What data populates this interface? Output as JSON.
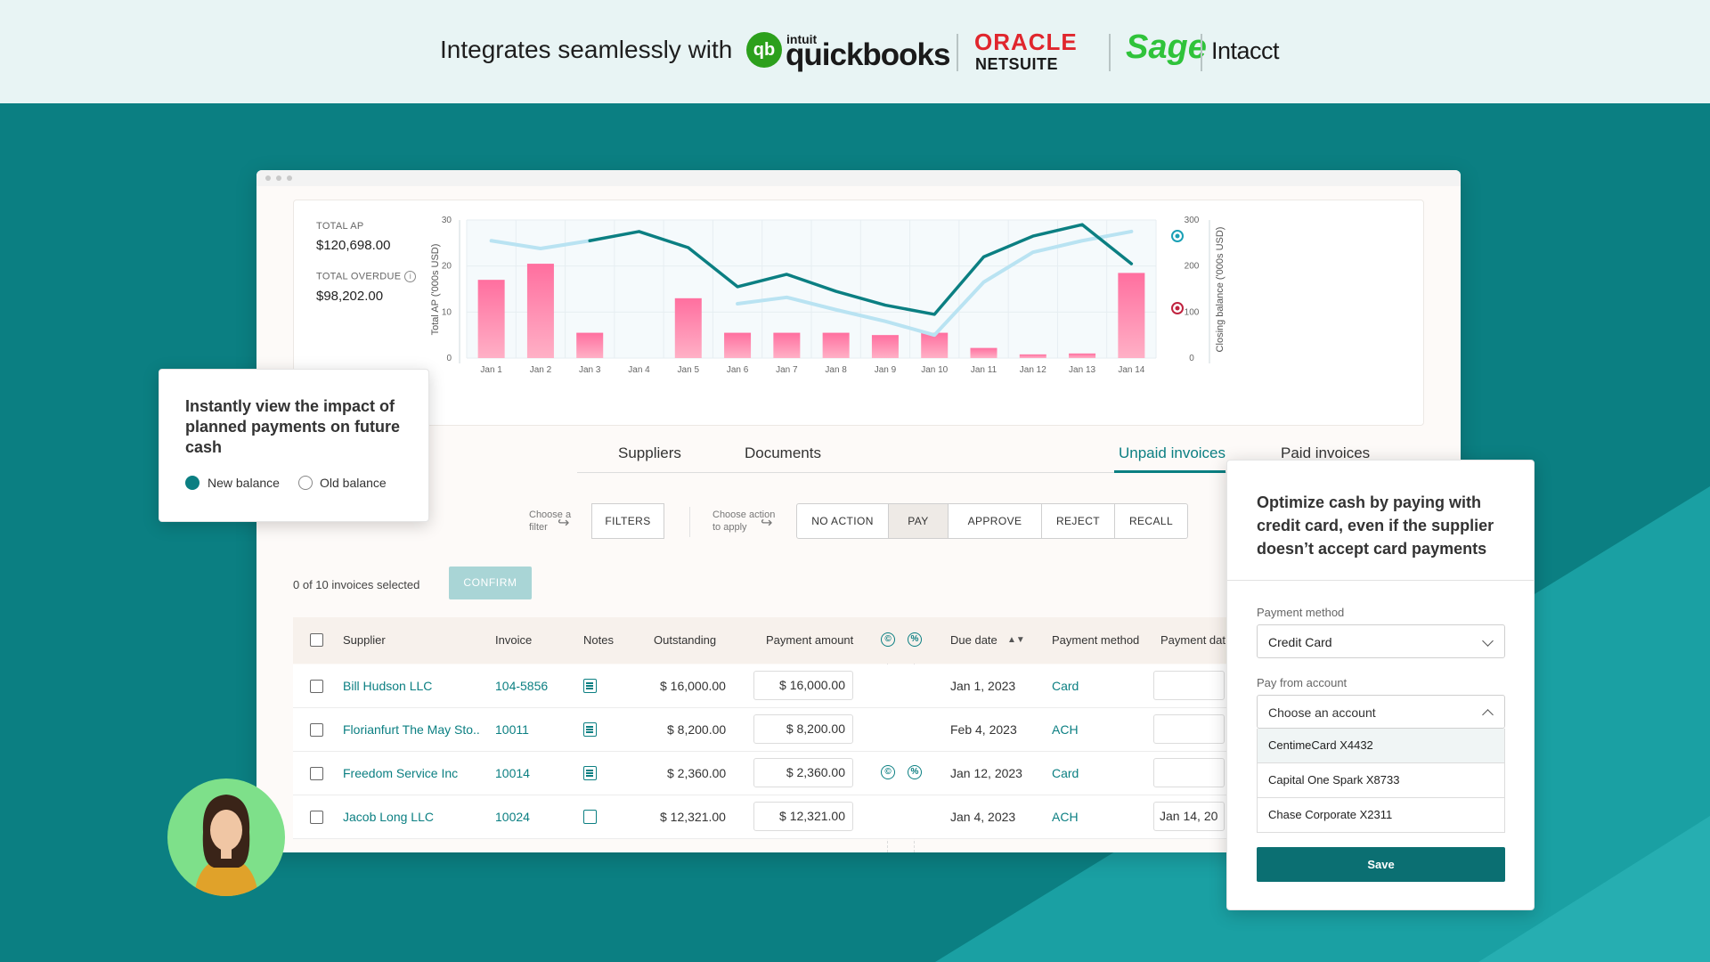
{
  "banner": {
    "text": "Integrates seamlessly with",
    "logos": {
      "quickbooks_mark": "qb",
      "quickbooks_small": "intuit",
      "quickbooks_word": "quickbooks",
      "oracle": "ORACLE",
      "netsuite": "NETSUITE",
      "sage": "Sage",
      "intacct": "Intacct"
    }
  },
  "summary": {
    "total_ap_label": "TOTAL AP",
    "total_ap_value": "$120,698.00",
    "total_overdue_label": "TOTAL OVERDUE",
    "total_overdue_value": "$98,202.00"
  },
  "chart_data": {
    "type": "bar",
    "categories": [
      "Jan 1",
      "Jan 2",
      "Jan 3",
      "Jan 4",
      "Jan 5",
      "Jan 6",
      "Jan 7",
      "Jan 8",
      "Jan 9",
      "Jan 10",
      "Jan 11",
      "Jan 12",
      "Jan 13",
      "Jan 14"
    ],
    "series": [
      {
        "values": [
          17,
          20.5,
          5.5,
          0,
          13,
          5.5,
          5.5,
          5.5,
          5,
          5.5,
          2.2,
          0.8,
          1,
          18.5
        ]
      }
    ],
    "lines": [
      {
        "values": [
          null,
          null,
          255,
          275,
          240,
          155,
          182,
          145,
          115,
          95,
          220,
          265,
          290,
          205
        ],
        "color": "#0b7f82"
      },
      {
        "values": [
          255,
          238,
          255,
          null,
          null,
          118,
          132,
          105,
          80,
          50,
          165,
          230,
          255,
          275
        ],
        "color": "#b9e3f2"
      }
    ],
    "ylabel": "Total AP ('000s USD)",
    "y2label": "Closing balance ('000s USD)",
    "ylim": [
      0,
      30
    ],
    "y2lim": [
      0,
      300
    ],
    "yticks": [
      "0",
      "10",
      "20",
      "30"
    ],
    "y2ticks": [
      "0",
      "100",
      "200",
      "300"
    ],
    "grid": true
  },
  "tabs": [
    "Suppliers",
    "Documents",
    "Unpaid invoices",
    "Paid invoices"
  ],
  "filters": {
    "filter_hint": [
      "Choose a",
      "filter"
    ],
    "filters_label": "FILTERS",
    "action_hint": [
      "Choose action",
      "to apply"
    ],
    "actions": [
      "NO ACTION",
      "PAY",
      "APPROVE",
      "REJECT",
      "RECALL"
    ]
  },
  "selection": {
    "count_text": "0 of 10 invoices selected",
    "confirm_label": "CONFIRM"
  },
  "table": {
    "headers": {
      "supplier": "Supplier",
      "invoice": "Invoice",
      "notes": "Notes",
      "outstanding": "Outstanding",
      "payment_amount": "Payment amount",
      "due_date": "Due date",
      "payment_method": "Payment method",
      "payment_date": "Payment dat"
    },
    "rows": [
      {
        "supplier": "Bill Hudson LLC",
        "invoice": "104-5856",
        "outstanding": "$ 16,000.00",
        "payment": "$ 16,000.00",
        "due": "Jan 1, 2023",
        "method": "Card",
        "date": ""
      },
      {
        "supplier": "Florianfurt The May Sto..",
        "invoice": "10011",
        "outstanding": "$ 8,200.00",
        "payment": "$ 8,200.00",
        "due": "Feb 4, 2023",
        "method": "ACH",
        "date": ""
      },
      {
        "supplier": "Freedom Service Inc",
        "invoice": "10014",
        "outstanding": "$ 2,360.00",
        "payment": "$ 2,360.00",
        "due": "Jan 12, 2023",
        "method": "Card",
        "date": ""
      },
      {
        "supplier": "Jacob Long LLC",
        "invoice": "10024",
        "outstanding": "$ 12,321.00",
        "payment": "$ 12,321.00",
        "due": "Jan 4, 2023",
        "method": "ACH",
        "date": "Jan 14, 20"
      }
    ]
  },
  "popup_left": {
    "title": "Instantly view the impact of planned payments on future cash",
    "new_balance": "New balance",
    "old_balance": "Old balance"
  },
  "panel_right": {
    "title": "Optimize cash by paying with credit card, even if the supplier doesn’t accept card payments",
    "payment_method_label": "Payment method",
    "payment_method_value": "Credit Card",
    "pay_from_label": "Pay from account",
    "pay_from_placeholder": "Choose an account",
    "accounts": [
      "CentimeCard X4432",
      "Capital One Spark X8733",
      "Chase Corporate X2311"
    ],
    "save_label": "Save"
  },
  "colors": {
    "teal": "#0b7f82",
    "light_line": "#b9e3f2",
    "bar_top": "#ff8fb1",
    "bar_bottom": "#ff6b9b",
    "marker_red": "#c0233f"
  }
}
